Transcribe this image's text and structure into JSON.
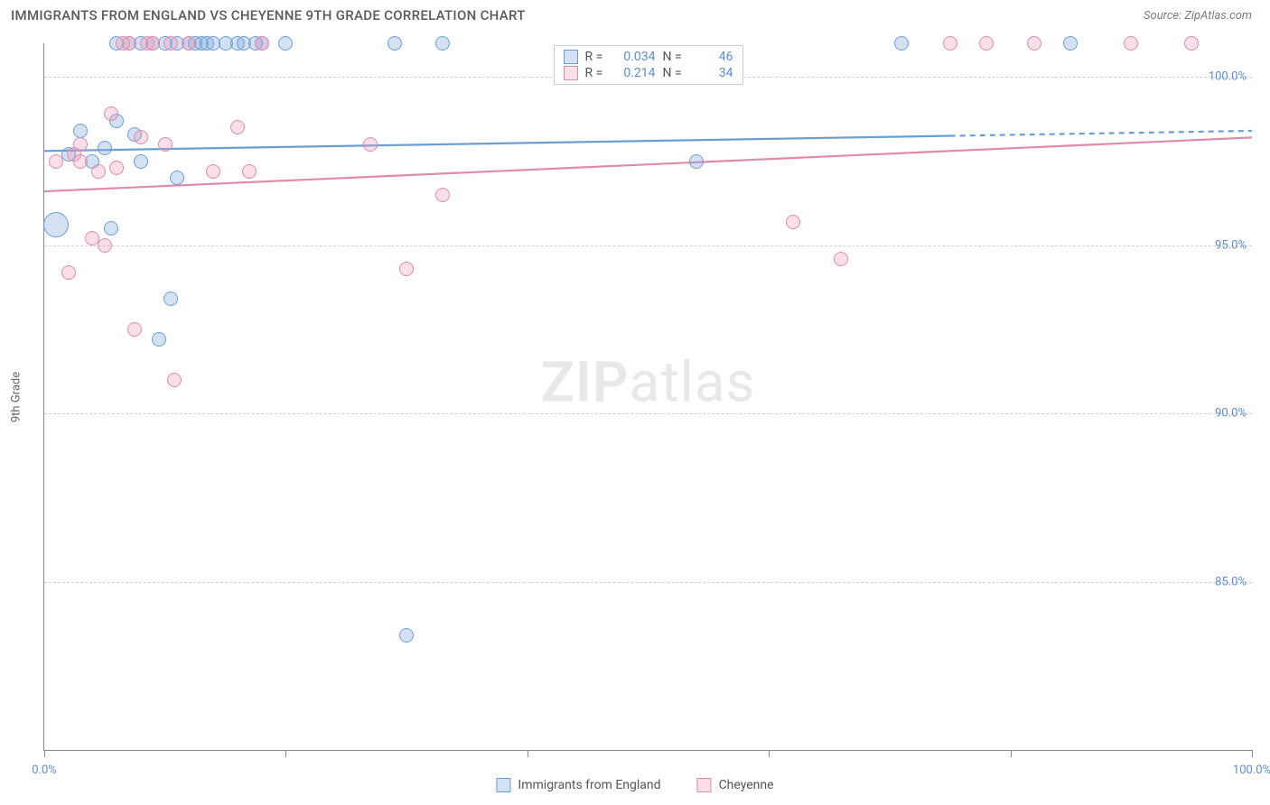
{
  "title": "IMMIGRANTS FROM ENGLAND VS CHEYENNE 9TH GRADE CORRELATION CHART",
  "source": "Source: ZipAtlas.com",
  "watermark_a": "ZIP",
  "watermark_b": "atlas",
  "chart": {
    "type": "scatter",
    "xlim": [
      0,
      100
    ],
    "ylim": [
      80,
      101
    ],
    "x_ticks": [
      0,
      20,
      40,
      60,
      80,
      100
    ],
    "x_tick_labels_shown": {
      "0": "0.0%",
      "100": "100.0%"
    },
    "y_ticks": [
      85,
      90,
      95,
      100
    ],
    "y_tick_labels": {
      "85": "85.0%",
      "90": "90.0%",
      "95": "95.0%",
      "100": "100.0%"
    },
    "ylabel": "9th Grade",
    "background_color": "#ffffff",
    "grid_color": "#d0d0d0",
    "axis_color": "#888888",
    "label_color": "#5b8dd6",
    "marker_radius": 8,
    "marker_stroke_width": 1.4,
    "series": [
      {
        "name": "Immigrants from England",
        "fill": "rgba(130,170,220,0.35)",
        "stroke": "#6a9fd4",
        "r_value": "0.034",
        "n_value": "46",
        "trend": {
          "x1": 0,
          "y1": 97.8,
          "x2": 100,
          "y2": 98.4,
          "solid_until": 75
        },
        "points": [
          [
            1,
            95.6,
            14
          ],
          [
            2,
            97.7
          ],
          [
            3,
            98.4
          ],
          [
            4,
            97.5
          ],
          [
            5,
            97.9
          ],
          [
            5.5,
            95.5
          ],
          [
            6,
            98.7
          ],
          [
            6,
            101
          ],
          [
            7,
            101
          ],
          [
            7.5,
            98.3
          ],
          [
            8,
            97.5
          ],
          [
            8,
            101
          ],
          [
            9,
            101
          ],
          [
            9.5,
            92.2
          ],
          [
            10,
            101
          ],
          [
            10.5,
            93.4
          ],
          [
            11,
            101
          ],
          [
            11,
            97.0
          ],
          [
            12,
            101
          ],
          [
            12.5,
            101
          ],
          [
            13,
            101
          ],
          [
            13.5,
            101
          ],
          [
            14,
            101
          ],
          [
            15,
            101
          ],
          [
            16,
            101
          ],
          [
            16.5,
            101
          ],
          [
            17.5,
            101
          ],
          [
            18,
            101
          ],
          [
            20,
            101
          ],
          [
            29,
            101
          ],
          [
            30,
            83.4
          ],
          [
            33,
            101
          ],
          [
            54,
            97.5
          ],
          [
            71,
            101
          ],
          [
            85,
            101
          ]
        ]
      },
      {
        "name": "Cheyenne",
        "fill": "rgba(235,150,180,0.30)",
        "stroke": "#e08bab",
        "r_value": "0.214",
        "n_value": "34",
        "trend": {
          "x1": 0,
          "y1": 96.6,
          "x2": 100,
          "y2": 98.2,
          "solid_until": 100
        },
        "points": [
          [
            1,
            97.5
          ],
          [
            2,
            94.2
          ],
          [
            2.5,
            97.7
          ],
          [
            3,
            98.0
          ],
          [
            3,
            97.5
          ],
          [
            4,
            95.2
          ],
          [
            4.5,
            97.2
          ],
          [
            5,
            95.0
          ],
          [
            5.5,
            98.9
          ],
          [
            6,
            97.3
          ],
          [
            6.5,
            101
          ],
          [
            7,
            101
          ],
          [
            7.5,
            92.5
          ],
          [
            8,
            98.2
          ],
          [
            8.5,
            101
          ],
          [
            9,
            101
          ],
          [
            10,
            98.0
          ],
          [
            10.5,
            101
          ],
          [
            10.8,
            91.0
          ],
          [
            12,
            101
          ],
          [
            14,
            97.2
          ],
          [
            16,
            98.5
          ],
          [
            17,
            97.2
          ],
          [
            18,
            101
          ],
          [
            27,
            98.0
          ],
          [
            30,
            94.3
          ],
          [
            33,
            96.5
          ],
          [
            62,
            95.7
          ],
          [
            66,
            94.6
          ],
          [
            75,
            101
          ],
          [
            78,
            101
          ],
          [
            82,
            101
          ],
          [
            90,
            101
          ],
          [
            95,
            101
          ]
        ]
      }
    ]
  },
  "legend_top": {
    "r_label": "R =",
    "n_label": "N ="
  },
  "legend_bottom": {
    "s1": "Immigrants from England",
    "s2": "Cheyenne"
  }
}
